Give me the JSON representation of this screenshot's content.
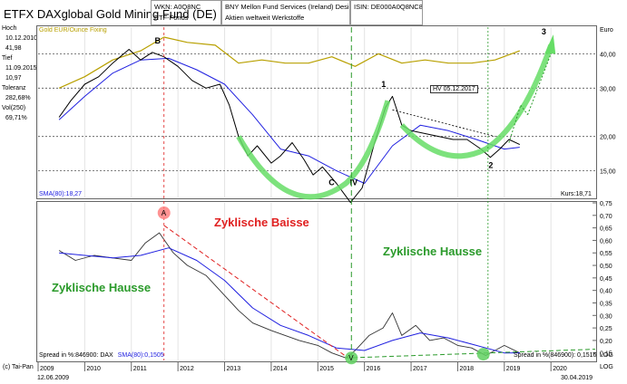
{
  "window_title": "ETFX DAXglobal Gold Mining Fund (DE)",
  "header": {
    "wkn": "WKN: A0Q8NC",
    "type": "ETF-Fonds",
    "issuer": "BNY Mellon Fund Services (Ireland) Desig",
    "sector": "Aktien weltweit Werkstoffe",
    "isin": "ISIN: DE000A0Q8NC8"
  },
  "sidebar": {
    "high_label": "Hoch",
    "high_date": "10.12.2010",
    "high_value": "41,98",
    "low_label": "Tief",
    "low_date": "11.09.2015",
    "low_value": "10,97",
    "tol_label": "Toleranz",
    "tol_value": "282,68%",
    "vol_label": "Vol(250)",
    "vol_value": "69,71%"
  },
  "top_chart": {
    "legend_gold": "Gold EUR/Ounce Fixing",
    "currency": "Euro",
    "sma_label": "SMA(80):18,27",
    "price_label": "Kurs:18,71",
    "hv_label": "HV 05.12.2017",
    "wave_labels": [
      "B",
      "C",
      "IV",
      "1",
      "2",
      "3"
    ],
    "colors": {
      "price": "#000000",
      "sma": "#2020e0",
      "gold": "#b8a000",
      "arc": "#66dd66"
    }
  },
  "bottom_chart": {
    "label_baisse": "Zyklische Baisse",
    "label_hausse_right": "Zyklische Hausse",
    "label_hausse_left": "Zyklische Hausse",
    "spread_label": "Spread in %:846900: DAX",
    "sma_label": "SMA(80):0,1505",
    "spread_right_label": "Spread in %(846900): 0,1516",
    "wave_label_a": "A",
    "wave_label_v": "V",
    "colors": {
      "baisse": "#e02020",
      "hausse": "#2a9a2a"
    }
  },
  "footer": {
    "copyright": "(c) Tai-Pan",
    "start_date": "12.06.2009",
    "end_date": "30.04.2019",
    "log_label": "LOG"
  },
  "chart_data": [
    {
      "type": "line",
      "title": "ETFX DAXglobal Gold Mining Fund (DE)",
      "ylabel": "Euro",
      "y_scale": "log",
      "ylim": [
        12,
        50
      ],
      "x_ticks": [
        "2009",
        "2010",
        "2011",
        "2012",
        "2013",
        "2014",
        "2015",
        "2016",
        "2017",
        "2018",
        "2019",
        "2020"
      ],
      "y_ticks": [
        "15,00",
        "20,00",
        "30,00",
        "40,00"
      ],
      "series": [
        {
          "name": "Kurs",
          "x": [
            2009.45,
            2009.7,
            2010.0,
            2010.3,
            2010.6,
            2010.95,
            2011.2,
            2011.45,
            2011.7,
            2012.0,
            2012.3,
            2012.6,
            2012.9,
            2013.1,
            2013.3,
            2013.5,
            2013.7,
            2014.0,
            2014.2,
            2014.45,
            2014.7,
            2014.9,
            2015.1,
            2015.4,
            2015.7,
            2015.95,
            2016.2,
            2016.45,
            2016.6,
            2016.8,
            2017.0,
            2017.3,
            2017.6,
            2017.9,
            2018.2,
            2018.5,
            2018.7,
            2018.9,
            2019.1,
            2019.33
          ],
          "y": [
            23.5,
            27,
            31,
            33,
            37,
            41.5,
            38,
            40.5,
            39,
            36,
            32,
            30,
            31,
            26,
            20,
            17,
            18.5,
            16,
            17,
            19,
            16.5,
            14.5,
            15.5,
            13.5,
            11.5,
            13,
            18.5,
            25.5,
            28,
            22,
            21,
            20.5,
            20,
            19.5,
            19.5,
            18,
            16.8,
            18,
            19.5,
            18.7
          ]
        },
        {
          "name": "SMA(80)",
          "x": [
            2009.45,
            2010.0,
            2010.6,
            2011.2,
            2011.8,
            2012.4,
            2013.0,
            2013.6,
            2014.2,
            2014.8,
            2015.4,
            2016.0,
            2016.6,
            2017.2,
            2017.8,
            2018.4,
            2019.0,
            2019.33
          ],
          "y": [
            23,
            28,
            34,
            38,
            38.5,
            35,
            31,
            24,
            18,
            17,
            15,
            13.5,
            18.5,
            22,
            21,
            19.5,
            18,
            18.27
          ]
        },
        {
          "name": "Gold EUR/Ounce Fixing",
          "x": [
            2009.45,
            2010.0,
            2010.6,
            2011.2,
            2011.7,
            2012.2,
            2012.8,
            2013.3,
            2013.8,
            2014.3,
            2014.8,
            2015.3,
            2015.8,
            2016.3,
            2016.8,
            2017.3,
            2017.8,
            2018.3,
            2018.8,
            2019.33
          ],
          "y": [
            30,
            33,
            38,
            41,
            46,
            44,
            43,
            37,
            38,
            37,
            37,
            39,
            36,
            40,
            37,
            38,
            37,
            37,
            38,
            41
          ]
        }
      ]
    },
    {
      "type": "line",
      "title": "Spread in %:846900: DAX",
      "ylim": [
        0.12,
        0.75
      ],
      "y_ticks": [
        "0,15",
        "0,20",
        "0,25",
        "0,30",
        "0,35",
        "0,40",
        "0,45",
        "0,50",
        "0,55",
        "0,60",
        "0,65",
        "0,70",
        "0,75"
      ],
      "series": [
        {
          "name": "Spread",
          "x": [
            2009.45,
            2009.8,
            2010.2,
            2010.6,
            2011.0,
            2011.3,
            2011.6,
            2011.9,
            2012.2,
            2012.6,
            2013.0,
            2013.3,
            2013.6,
            2014.0,
            2014.3,
            2014.6,
            2015.0,
            2015.3,
            2015.6,
            2015.8,
            2016.1,
            2016.4,
            2016.6,
            2016.8,
            2017.1,
            2017.4,
            2017.7,
            2018.0,
            2018.3,
            2018.6,
            2018.8,
            2019.0,
            2019.33
          ],
          "y": [
            0.56,
            0.52,
            0.54,
            0.53,
            0.52,
            0.59,
            0.63,
            0.55,
            0.5,
            0.46,
            0.38,
            0.32,
            0.27,
            0.24,
            0.22,
            0.2,
            0.18,
            0.15,
            0.13,
            0.16,
            0.22,
            0.25,
            0.31,
            0.22,
            0.26,
            0.2,
            0.21,
            0.18,
            0.17,
            0.14,
            0.16,
            0.18,
            0.15
          ]
        },
        {
          "name": "SMA(80)",
          "x": [
            2009.45,
            2010.0,
            2010.6,
            2011.2,
            2011.8,
            2012.4,
            2013.0,
            2013.6,
            2014.2,
            2014.8,
            2015.4,
            2016.0,
            2016.6,
            2017.2,
            2017.8,
            2018.4,
            2019.0,
            2019.33
          ],
          "y": [
            0.55,
            0.54,
            0.53,
            0.54,
            0.57,
            0.52,
            0.44,
            0.33,
            0.26,
            0.22,
            0.17,
            0.16,
            0.2,
            0.23,
            0.21,
            0.18,
            0.15,
            0.1505
          ]
        }
      ]
    }
  ]
}
